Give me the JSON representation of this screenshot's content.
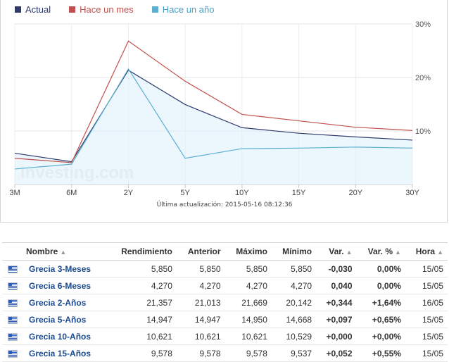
{
  "chart_data": {
    "type": "line",
    "categories": [
      "3M",
      "6M",
      "2Y",
      "5Y",
      "10Y",
      "15Y",
      "20Y",
      "30Y"
    ],
    "series": [
      {
        "name": "Actual",
        "color": "#2f3b6b",
        "fill": true,
        "values": [
          5.85,
          4.27,
          21.357,
          14.947,
          10.621,
          9.578,
          8.9,
          8.3
        ]
      },
      {
        "name": "Hace un mes",
        "color": "#c0504d",
        "fill": false,
        "values": [
          4.9,
          4.1,
          26.8,
          19.3,
          13.1,
          11.9,
          10.7,
          10.1
        ]
      },
      {
        "name": "Hace un año",
        "color": "#5bafd1",
        "fill": false,
        "values": [
          2.9,
          3.8,
          21.6,
          4.9,
          6.7,
          6.8,
          7.0,
          6.8
        ]
      }
    ],
    "yticks": [
      "10%",
      "20%",
      "30%"
    ],
    "ylim": [
      0,
      30
    ],
    "grid": true,
    "legend": "top-left",
    "updated": "Última actualización: 2015-05-16 08:12:36"
  },
  "watermark": "Investing.com",
  "table": {
    "headers": [
      "Nombre",
      "Rendimiento",
      "Anterior",
      "Máximo",
      "Mínimo",
      "Var.",
      "Var. %",
      "Hora"
    ],
    "sort_icon": "sort-icon",
    "flag_icon": "greece-flag-icon",
    "rows": [
      {
        "name": "Grecia 3-Meses",
        "yield": "5,850",
        "prev": "5,850",
        "high": "5,850",
        "low": "5,850",
        "chg": "-0,030",
        "chg_pct": "0,00%",
        "time": "15/05"
      },
      {
        "name": "Grecia 6-Meses",
        "yield": "4,270",
        "prev": "4,270",
        "high": "4,270",
        "low": "4,270",
        "chg": "0,040",
        "chg_pct": "0,00%",
        "time": "15/05"
      },
      {
        "name": "Grecia 2-Años",
        "yield": "21,357",
        "prev": "21,013",
        "high": "21,669",
        "low": "20,142",
        "chg": "+0,344",
        "chg_pct": "+1,64%",
        "time": "16/05"
      },
      {
        "name": "Grecia 5-Años",
        "yield": "14,947",
        "prev": "14,947",
        "high": "14,950",
        "low": "14,668",
        "chg": "+0,097",
        "chg_pct": "+0,65%",
        "time": "15/05"
      },
      {
        "name": "Grecia 10-Años",
        "yield": "10,621",
        "prev": "10,621",
        "high": "10,621",
        "low": "10,529",
        "chg": "+0,000",
        "chg_pct": "+0,00%",
        "time": "15/05"
      },
      {
        "name": "Grecia 15-Años",
        "yield": "9,578",
        "prev": "9,578",
        "high": "9,578",
        "low": "9,537",
        "chg": "+0,052",
        "chg_pct": "+0,55%",
        "time": "15/05"
      }
    ]
  }
}
